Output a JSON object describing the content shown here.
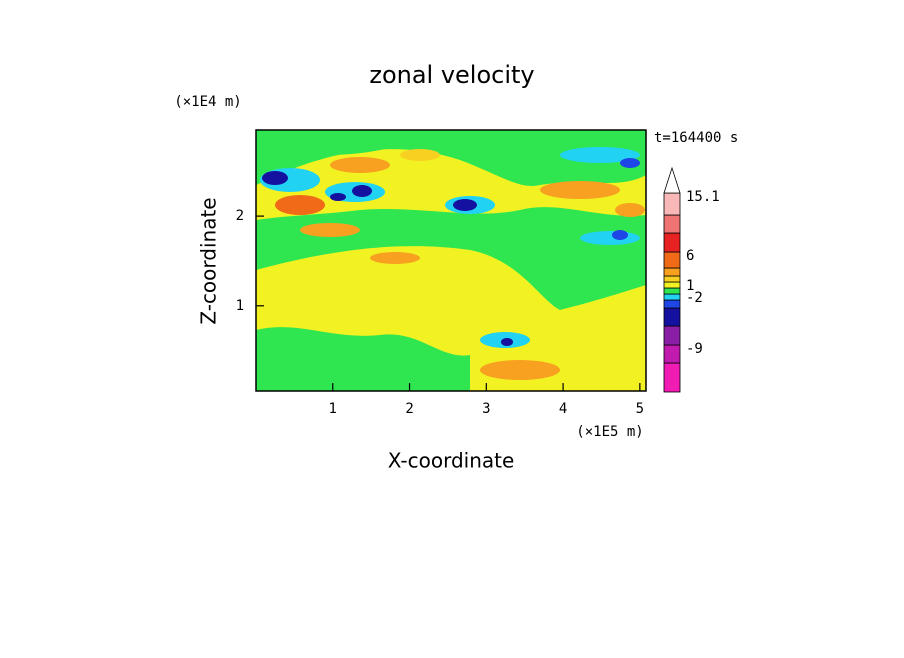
{
  "chart_data": {
    "type": "contour",
    "title": "zonal velocity",
    "x_label": "X-coordinate",
    "y_label": "Z-coordinate",
    "x_unit": "(×1E5 m)",
    "y_unit": "(×1E4 m)",
    "time_label": "t=164400 s",
    "xlim": [
      0,
      5.08
    ],
    "xticks": [
      1,
      2,
      3,
      4,
      5
    ],
    "ylim": [
      0.05,
      2.96
    ],
    "yticks": [
      1,
      2
    ],
    "colorbar": {
      "colors": [
        "#f01cb4",
        "#c01aae",
        "#8a1ea6",
        "#1410a0",
        "#1e46e6",
        "#22d2f2",
        "#30e650",
        "#f2f222",
        "#f8d022",
        "#f8a020",
        "#f06a18",
        "#e62222",
        "#f07474",
        "#f8b8b8"
      ],
      "labels": [
        null,
        null,
        -9,
        null,
        null,
        null,
        -2,
        null,
        1,
        null,
        null,
        6,
        null,
        null,
        15.1
      ]
    }
  }
}
